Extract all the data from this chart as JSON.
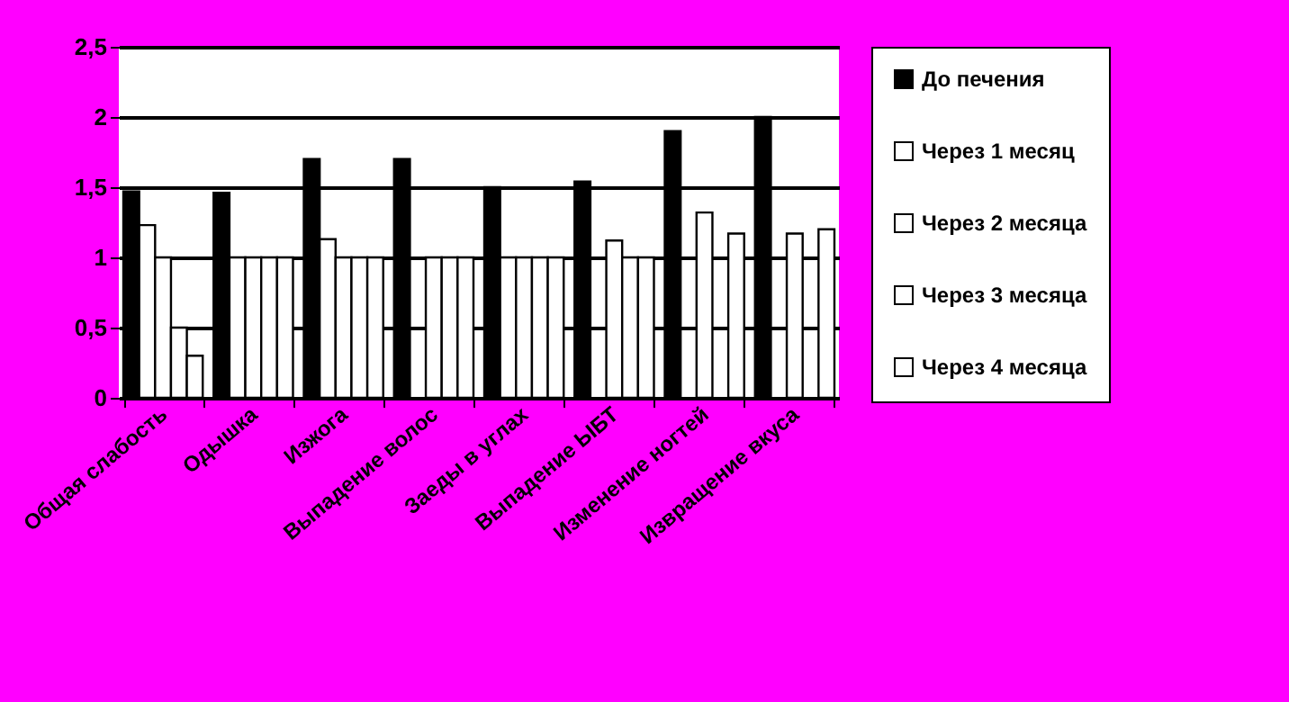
{
  "chart_data": {
    "type": "bar",
    "categories": [
      "Общая слабость",
      "Одышка",
      "Изжога",
      "Выпадение волос",
      "Заеды в углах",
      "Выпадение ЫБТ",
      "Изменение ногтей",
      "Извращение вкуса"
    ],
    "series": [
      {
        "name": "До печения",
        "color": "#000000",
        "values": [
          1.47,
          1.46,
          1.7,
          1.7,
          1.5,
          1.54,
          1.9,
          2.0
        ]
      },
      {
        "name": "Через 1 месяц",
        "color": "#ffffff",
        "values": [
          1.23,
          1.0,
          1.13,
          null,
          1.0,
          null,
          null,
          null
        ]
      },
      {
        "name": "Через 2 месяца",
        "color": "#ffffff",
        "values": [
          1.0,
          1.0,
          1.0,
          1.0,
          1.0,
          1.12,
          1.32,
          1.17
        ]
      },
      {
        "name": "Через 3 месяца",
        "color": "#ffffff",
        "values": [
          0.5,
          1.0,
          1.0,
          1.0,
          1.0,
          1.0,
          null,
          null
        ]
      },
      {
        "name": "Через 4 месяца",
        "color": "#ffffff",
        "values": [
          0.3,
          1.0,
          1.0,
          1.0,
          1.0,
          1.0,
          1.17,
          1.2
        ]
      }
    ],
    "ylim": [
      0,
      2.5
    ],
    "yticks": [
      0,
      {
        "value": 0.5,
        "label": "0,5"
      },
      1,
      {
        "value": 1.5,
        "label": "1,5"
      },
      2,
      {
        "value": 2.5,
        "label": "2,5"
      }
    ],
    "grid": "y",
    "legend": "right"
  }
}
